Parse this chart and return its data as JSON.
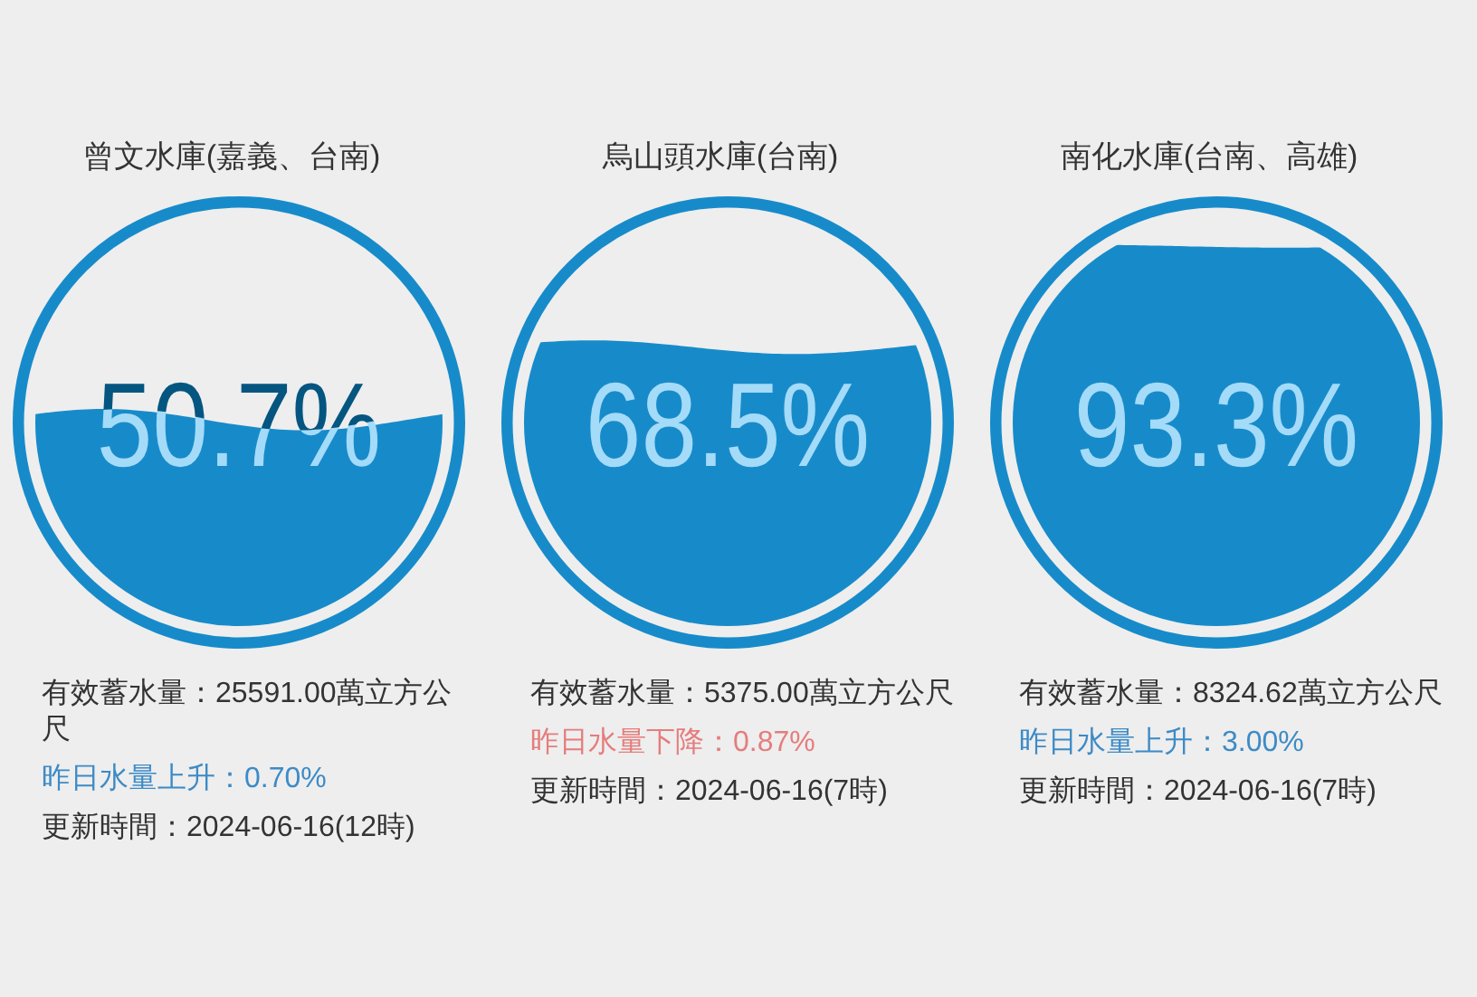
{
  "chart_data": [
    {
      "type": "other",
      "title": "曾文水庫(嘉義、台南)",
      "values": [
        50.7
      ],
      "value_labels": [
        "50.7%"
      ],
      "color": "#178bca",
      "annotations": [
        "有效蓄水量：25591.00萬立方公尺",
        "昨日水量上升：0.70%",
        "更新時間：2024-06-16(12時)"
      ]
    },
    {
      "type": "other",
      "title": "烏山頭水庫(台南)",
      "values": [
        68.5
      ],
      "value_labels": [
        "68.5%"
      ],
      "color": "#178bca",
      "annotations": [
        "有效蓄水量：5375.00萬立方公尺",
        "昨日水量下降：0.87%",
        "更新時間：2024-06-16(7時)"
      ]
    },
    {
      "type": "other",
      "title": "南化水庫(台南、高雄)",
      "values": [
        93.3
      ],
      "value_labels": [
        "93.3%"
      ],
      "color": "#178bca",
      "annotations": [
        "有效蓄水量：8324.62萬立方公尺",
        "昨日水量上升：3.00%",
        "更新時間：2024-06-16(7時)"
      ]
    }
  ]
}
